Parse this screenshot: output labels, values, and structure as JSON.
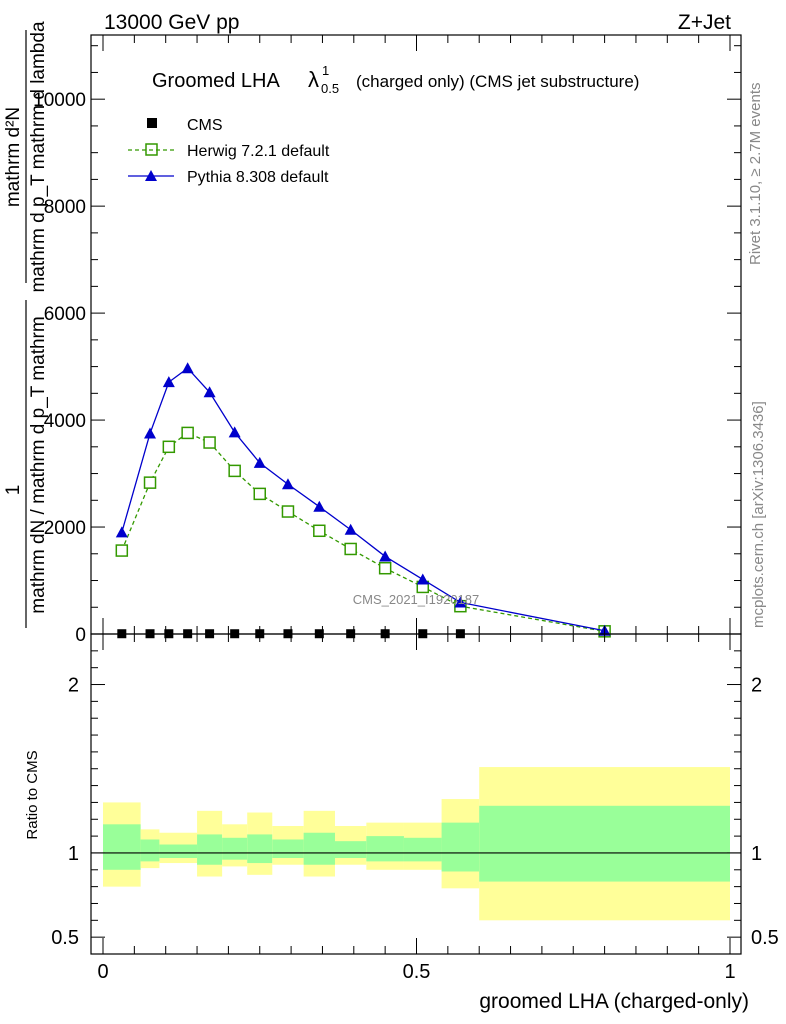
{
  "header": {
    "left": "13000 GeV pp",
    "right": "Z+Jet"
  },
  "side_labels": {
    "rivet": "Rivet 3.1.10, ≥ 2.7M events",
    "mcplots": "mcplots.cern.ch [arXiv:1306.3436]"
  },
  "watermark": "CMS_2021_I1920187",
  "chart_data": [
    {
      "type": "line",
      "title": {
        "main": "Groomed LHA",
        "symbol": "λ",
        "superscript": "1",
        "subscript": "0.5",
        "suffix": "(charged only) (CMS jet substructure)"
      },
      "ylabel": {
        "top_numerator": "mathrm d²N",
        "top_denominator": "mathrm d p_T mathrm d lambda",
        "fraction_one": "1",
        "bottom_denominator": "mathrm dN / mathrm d p_T mathrm",
        "bottom_numerator_prefix": "mathrm d"
      },
      "xlim": [
        0,
        1
      ],
      "ylim": [
        0,
        11200
      ],
      "y_ticks": [
        {
          "value": 0,
          "label": "0"
        },
        {
          "value": 2000,
          "label": "2000"
        },
        {
          "value": 4000,
          "label": "4000"
        },
        {
          "value": 6000,
          "label": "6000"
        },
        {
          "value": 8000,
          "label": "8000"
        },
        {
          "value": 10000,
          "label": "10000"
        }
      ],
      "legend_position": "top-left",
      "series": [
        {
          "name": "CMS",
          "color": "#000000",
          "marker": "filled-square",
          "x": [
            0.03,
            0.075,
            0.105,
            0.135,
            0.17,
            0.21,
            0.25,
            0.295,
            0.345,
            0.395,
            0.45,
            0.51,
            0.57
          ],
          "values": [
            5,
            5,
            5,
            5,
            5,
            5,
            5,
            5,
            5,
            5,
            5,
            5,
            5
          ]
        },
        {
          "name": "Herwig 7.2.1 default",
          "color": "#339900",
          "marker": "open-square",
          "line": "dashed",
          "x": [
            0.03,
            0.075,
            0.105,
            0.135,
            0.17,
            0.21,
            0.25,
            0.295,
            0.345,
            0.395,
            0.45,
            0.51,
            0.57,
            0.8
          ],
          "values": [
            1560,
            2830,
            3500,
            3760,
            3580,
            3050,
            2620,
            2290,
            1930,
            1590,
            1230,
            880,
            520,
            50
          ]
        },
        {
          "name": "Pythia 8.308 default",
          "color": "#0000cc",
          "marker": "filled-triangle",
          "line": "solid",
          "x": [
            0.03,
            0.075,
            0.105,
            0.135,
            0.17,
            0.21,
            0.25,
            0.295,
            0.345,
            0.395,
            0.45,
            0.51,
            0.57,
            0.8
          ],
          "values": [
            1900,
            3750,
            4710,
            4970,
            4520,
            3770,
            3200,
            2800,
            2380,
            1950,
            1450,
            1020,
            590,
            60
          ]
        }
      ]
    },
    {
      "type": "area",
      "ylabel": "Ratio to CMS",
      "xlabel": "groomed LHA (charged-only)",
      "xlim": [
        0,
        1
      ],
      "ylim": [
        0.4,
        2.3
      ],
      "y_ticks": [
        {
          "value": 0.5,
          "label": "0.5"
        },
        {
          "value": 1,
          "label": "1"
        },
        {
          "value": 2,
          "label": "2"
        }
      ],
      "x_ticks": [
        {
          "value": 0,
          "label": "0"
        },
        {
          "value": 0.5,
          "label": "0.5"
        },
        {
          "value": 1,
          "label": "1"
        }
      ],
      "band_colors": {
        "outer": "#ffff99",
        "inner": "#99ff99",
        "reference": "#000000"
      },
      "bins": [
        {
          "lo": 0.0,
          "hi": 0.06,
          "outer": [
            0.8,
            1.3
          ],
          "inner": [
            0.9,
            1.17
          ]
        },
        {
          "lo": 0.06,
          "hi": 0.09,
          "outer": [
            0.91,
            1.14
          ],
          "inner": [
            0.95,
            1.08
          ]
        },
        {
          "lo": 0.09,
          "hi": 0.15,
          "outer": [
            0.94,
            1.12
          ],
          "inner": [
            0.97,
            1.05
          ]
        },
        {
          "lo": 0.15,
          "hi": 0.19,
          "outer": [
            0.86,
            1.25
          ],
          "inner": [
            0.93,
            1.11
          ]
        },
        {
          "lo": 0.19,
          "hi": 0.23,
          "outer": [
            0.92,
            1.17
          ],
          "inner": [
            0.96,
            1.09
          ]
        },
        {
          "lo": 0.23,
          "hi": 0.27,
          "outer": [
            0.87,
            1.24
          ],
          "inner": [
            0.94,
            1.11
          ]
        },
        {
          "lo": 0.27,
          "hi": 0.32,
          "outer": [
            0.93,
            1.16
          ],
          "inner": [
            0.97,
            1.08
          ]
        },
        {
          "lo": 0.32,
          "hi": 0.37,
          "outer": [
            0.86,
            1.25
          ],
          "inner": [
            0.93,
            1.12
          ]
        },
        {
          "lo": 0.37,
          "hi": 0.42,
          "outer": [
            0.93,
            1.16
          ],
          "inner": [
            0.97,
            1.07
          ]
        },
        {
          "lo": 0.42,
          "hi": 0.48,
          "outer": [
            0.9,
            1.18
          ],
          "inner": [
            0.95,
            1.1
          ]
        },
        {
          "lo": 0.48,
          "hi": 0.54,
          "outer": [
            0.9,
            1.18
          ],
          "inner": [
            0.95,
            1.09
          ]
        },
        {
          "lo": 0.54,
          "hi": 0.6,
          "outer": [
            0.79,
            1.32
          ],
          "inner": [
            0.89,
            1.18
          ]
        },
        {
          "lo": 0.6,
          "hi": 1.0,
          "outer": [
            0.6,
            1.51
          ],
          "inner": [
            0.83,
            1.28
          ]
        }
      ]
    }
  ]
}
